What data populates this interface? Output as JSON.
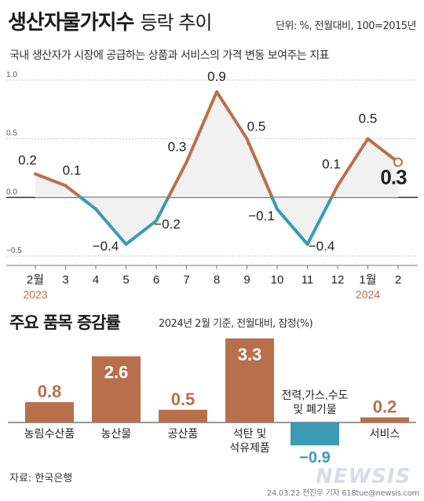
{
  "header": {
    "title_main": "생산자물가지수",
    "title_sub": "등락 추이",
    "unit": "단위: %, 전월대비, 100=2015년",
    "description": "국내 생산자가 시장에 공급하는 상품과 서비스의 가격 변동 보여주는 지표"
  },
  "chart_data": [
    {
      "type": "line",
      "categories": [
        "2월",
        "3",
        "4",
        "5",
        "6",
        "7",
        "8",
        "9",
        "10",
        "11",
        "12",
        "1월",
        "2"
      ],
      "year_labels": [
        {
          "index": 0,
          "text": "2023"
        },
        {
          "index": 11,
          "text": "2024"
        }
      ],
      "values": [
        0.2,
        0.1,
        -0.1,
        -0.4,
        -0.2,
        0.3,
        0.9,
        0.5,
        -0.1,
        -0.4,
        0.1,
        0.5,
        0.3
      ],
      "data_labels": [
        "0.2",
        "0.1",
        "",
        "−0.4",
        "−0.2",
        "0.3",
        "0.9",
        "0.5",
        "−0.1",
        "−0.4",
        "0.1",
        "0.5",
        "0.3"
      ],
      "yticks": [
        1.0,
        0.5,
        0.0,
        -0.5
      ],
      "ytick_labels": [
        "1.0",
        "0.5",
        "0.0",
        "−0.5"
      ],
      "ylim": [
        -0.5,
        1.0
      ],
      "colors": {
        "positive": "#b8704c",
        "negative": "#3a9bb3",
        "baseline": "#333333"
      }
    },
    {
      "type": "bar",
      "title": "주요 품목 증감률",
      "note": "2024년 2월 기준, 전월대비, 잠정(%)",
      "categories": [
        [
          "농림수산품"
        ],
        [
          "농산물"
        ],
        [
          "공산품"
        ],
        [
          "석탄 및",
          "석유제품"
        ],
        [
          "전력,가스,수도",
          "및 폐기물"
        ],
        [
          "서비스"
        ]
      ],
      "values": [
        0.8,
        2.6,
        0.5,
        3.3,
        -0.9,
        0.2
      ],
      "value_labels": [
        "0.8",
        "2.6",
        "0.5",
        "3.3",
        "−0.9",
        "0.2"
      ],
      "colors": {
        "positive": "#b8704c",
        "negative": "#3a9bb3",
        "inside_label": "#ffffff",
        "outside_label": "#b8704c",
        "negative_label": "#3a9bb3"
      }
    }
  ],
  "footer": {
    "source": "자료: 한국은행",
    "credit": "24.03.22 전진우 기자 618tue@newsis.com",
    "watermark": "NEWSIS"
  }
}
